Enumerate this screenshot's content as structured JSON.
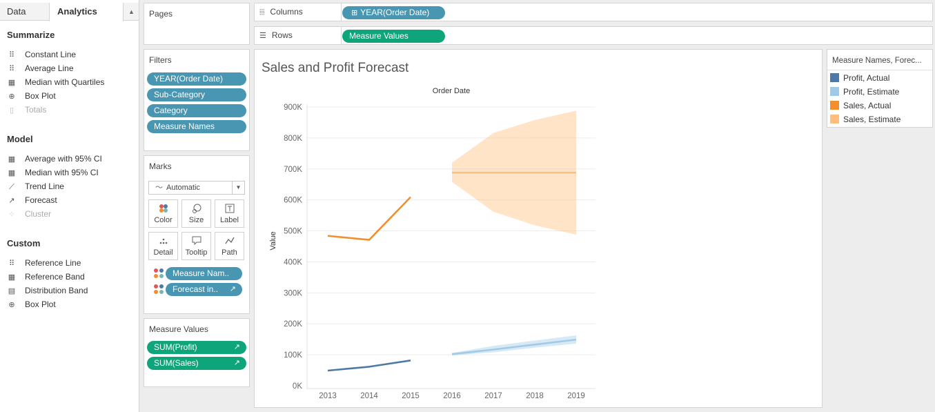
{
  "left_panel": {
    "tabs": {
      "data": "Data",
      "analytics": "Analytics"
    },
    "summarize": {
      "title": "Summarize",
      "items": [
        {
          "label": "Constant Line",
          "icon": "constant-line-icon",
          "enabled": true
        },
        {
          "label": "Average Line",
          "icon": "average-line-icon",
          "enabled": true
        },
        {
          "label": "Median with Quartiles",
          "icon": "median-quartiles-icon",
          "enabled": true
        },
        {
          "label": "Box Plot",
          "icon": "box-plot-icon",
          "enabled": true
        },
        {
          "label": "Totals",
          "icon": "totals-icon",
          "enabled": false
        }
      ]
    },
    "model": {
      "title": "Model",
      "items": [
        {
          "label": "Average with 95% CI",
          "icon": "average-ci-icon",
          "enabled": true
        },
        {
          "label": "Median with 95% CI",
          "icon": "median-ci-icon",
          "enabled": true
        },
        {
          "label": "Trend Line",
          "icon": "trend-line-icon",
          "enabled": true
        },
        {
          "label": "Forecast",
          "icon": "forecast-icon",
          "enabled": true
        },
        {
          "label": "Cluster",
          "icon": "cluster-icon",
          "enabled": false
        }
      ]
    },
    "custom": {
      "title": "Custom",
      "items": [
        {
          "label": "Reference Line",
          "icon": "reference-line-icon",
          "enabled": true
        },
        {
          "label": "Reference Band",
          "icon": "reference-band-icon",
          "enabled": true
        },
        {
          "label": "Distribution Band",
          "icon": "distribution-band-icon",
          "enabled": true
        },
        {
          "label": "Box Plot",
          "icon": "box-plot-icon",
          "enabled": true
        }
      ]
    }
  },
  "pages": {
    "title": "Pages"
  },
  "filters": {
    "title": "Filters",
    "pills": [
      "YEAR(Order Date)",
      "Sub-Category",
      "Category",
      "Measure Names"
    ]
  },
  "marks": {
    "title": "Marks",
    "type": "Automatic",
    "buttons": [
      "Color",
      "Size",
      "Label",
      "Detail",
      "Tooltip",
      "Path"
    ],
    "fields": [
      "Measure Nam..",
      "Forecast in.."
    ]
  },
  "measure_values": {
    "title": "Measure Values",
    "pills": [
      "SUM(Profit)",
      "SUM(Sales)"
    ]
  },
  "shelves": {
    "columns": {
      "label": "Columns",
      "pill": "YEAR(Order Date)"
    },
    "rows": {
      "label": "Rows",
      "pill": "Measure Values"
    }
  },
  "viz": {
    "title": "Sales and Profit Forecast"
  },
  "legend": {
    "title": "Measure Names, Forec...",
    "items": [
      {
        "label": "Profit, Actual",
        "color": "#4e79a7"
      },
      {
        "label": "Profit, Estimate",
        "color": "#a0cbe8"
      },
      {
        "label": "Sales, Actual",
        "color": "#f28e2b"
      },
      {
        "label": "Sales, Estimate",
        "color": "#ffbe7d"
      }
    ]
  },
  "chart_data": {
    "type": "line",
    "title": "Sales and Profit Forecast",
    "xlabel": "Order Date",
    "ylabel": "Value",
    "categories": [
      "2013",
      "2014",
      "2015",
      "2016",
      "2017",
      "2018",
      "2019"
    ],
    "y_ticks": [
      "0K",
      "100K",
      "200K",
      "300K",
      "400K",
      "500K",
      "600K",
      "700K",
      "800K",
      "900K"
    ],
    "ylim": [
      0,
      900000
    ],
    "grid": true,
    "series": [
      {
        "name": "Profit, Actual",
        "color": "#4e79a7",
        "values": [
          49000,
          61500,
          81700,
          null,
          null,
          null,
          null
        ]
      },
      {
        "name": "Profit, Estimate",
        "color": "#a0cbe8",
        "values": [
          null,
          null,
          null,
          102000,
          117000,
          133000,
          149000
        ],
        "band_low": [
          null,
          null,
          null,
          98000,
          108000,
          123000,
          136000
        ],
        "band_high": [
          null,
          null,
          null,
          106000,
          129000,
          146000,
          163000
        ]
      },
      {
        "name": "Sales, Actual",
        "color": "#f28e2b",
        "values": [
          484000,
          471000,
          609000,
          null,
          null,
          null,
          null
        ]
      },
      {
        "name": "Sales, Estimate",
        "color": "#ffbe7d",
        "values": [
          null,
          null,
          null,
          688000,
          688000,
          688000,
          688000
        ],
        "band_low": [
          null,
          null,
          null,
          658000,
          562000,
          518000,
          488000
        ],
        "band_high": [
          null,
          null,
          null,
          720000,
          816000,
          858000,
          888000
        ]
      }
    ]
  }
}
